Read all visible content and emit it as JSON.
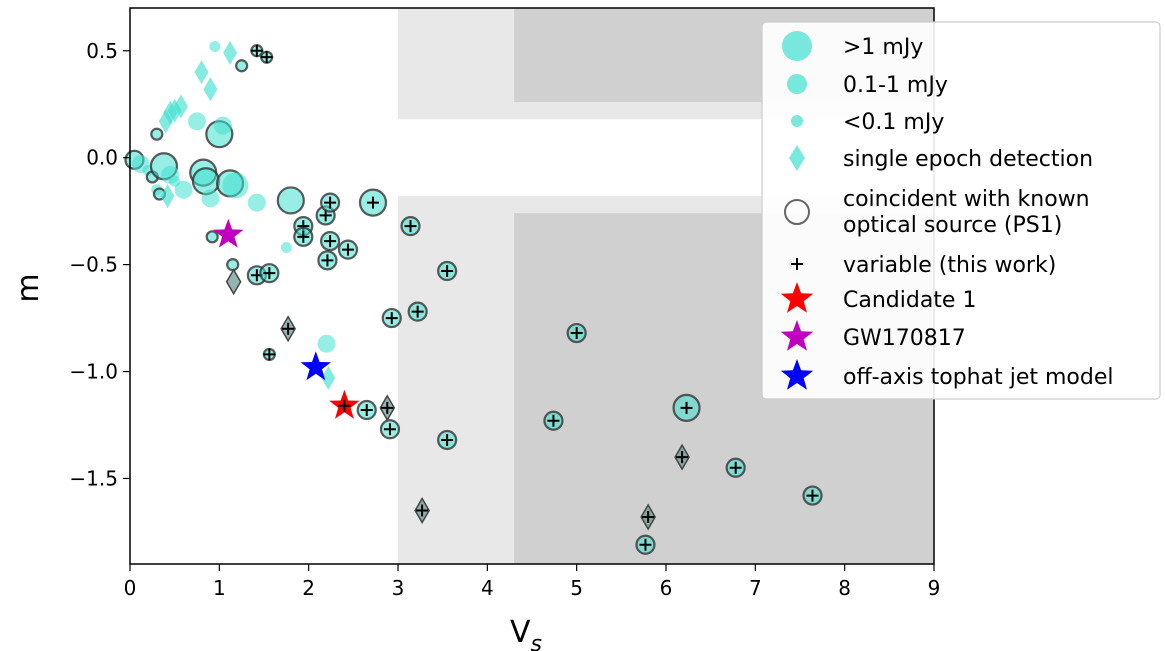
{
  "chart_data": {
    "type": "scatter",
    "xlabel": "V",
    "xlabel_sub": "s",
    "ylabel": "m",
    "xlim": [
      0,
      9
    ],
    "ylim": [
      -1.9,
      0.7
    ],
    "xticks": [
      "0",
      "1",
      "2",
      "3",
      "4",
      "5",
      "6",
      "7",
      "8",
      "9"
    ],
    "yticks": [
      "0.5",
      "0.0",
      "−0.5",
      "−1.0",
      "−1.5"
    ],
    "grid": false,
    "legend_position": "top-right",
    "shaded_regions": [
      {
        "shade": "light",
        "x": [
          3,
          9
        ],
        "y": [
          -1.9,
          -0.18
        ]
      },
      {
        "shade": "light",
        "x": [
          3,
          9
        ],
        "y": [
          0.18,
          0.7
        ]
      },
      {
        "shade": "dark",
        "x": [
          4.3,
          9
        ],
        "y": [
          -1.9,
          -0.26
        ]
      },
      {
        "shade": "dark",
        "x": [
          4.3,
          9
        ],
        "y": [
          0.26,
          0.7
        ]
      }
    ],
    "colors": {
      "cyan": "#40e0d0",
      "candidate": "#ff0000",
      "gw": "#bf00bf",
      "model": "#0000ff",
      "light_shade": "#e8e8e8",
      "dark_shade": "#d0d0d0"
    },
    "legend": [
      {
        "label": ">1 mJy",
        "symbol": "circle-large"
      },
      {
        "label": "0.1-1 mJy",
        "symbol": "circle-medium"
      },
      {
        "label": "<0.1 mJy",
        "symbol": "circle-small"
      },
      {
        "label": "single epoch detection",
        "symbol": "diamond"
      },
      {
        "label": "coincident with known",
        "label2": "optical source (PS1)",
        "symbol": "ring"
      },
      {
        "label": "variable (this work)",
        "symbol": "plus"
      },
      {
        "label": "Candidate 1",
        "symbol": "star-red"
      },
      {
        "label": "GW170817",
        "symbol": "star-magenta"
      },
      {
        "label": "off-axis tophat jet model",
        "symbol": "star-blue"
      }
    ],
    "points": [
      {
        "x": 0.05,
        "y": -0.01,
        "size": "m",
        "ring": true
      },
      {
        "x": 0.12,
        "y": -0.03,
        "size": "m",
        "ring": false
      },
      {
        "x": 0.2,
        "y": -0.06,
        "size": "s",
        "ring": false
      },
      {
        "x": 0.25,
        "y": -0.09,
        "size": "s",
        "ring": true
      },
      {
        "x": 0.3,
        "y": 0.11,
        "size": "s",
        "ring": true
      },
      {
        "x": 0.3,
        "y": -0.15,
        "size": "s",
        "ring": false
      },
      {
        "x": 0.33,
        "y": -0.17,
        "size": "s",
        "ring": true
      },
      {
        "x": 0.38,
        "y": -0.04,
        "size": "l",
        "ring": true
      },
      {
        "x": 0.45,
        "y": -0.08,
        "size": "m",
        "ring": false
      },
      {
        "x": 0.5,
        "y": -0.11,
        "size": "s",
        "ring": false
      },
      {
        "x": 0.6,
        "y": -0.15,
        "size": "m",
        "ring": false
      },
      {
        "x": 0.75,
        "y": 0.17,
        "size": "m",
        "ring": false
      },
      {
        "x": 0.82,
        "y": -0.07,
        "size": "l",
        "ring": true
      },
      {
        "x": 0.85,
        "y": -0.11,
        "size": "l",
        "ring": true
      },
      {
        "x": 0.9,
        "y": -0.19,
        "size": "m",
        "ring": false
      },
      {
        "x": 0.95,
        "y": 0.52,
        "size": "s",
        "ring": false
      },
      {
        "x": 1.0,
        "y": 0.11,
        "size": "l",
        "ring": true
      },
      {
        "x": 1.04,
        "y": 0.15,
        "size": "m",
        "ring": false
      },
      {
        "x": 1.12,
        "y": -0.12,
        "size": "l",
        "ring": true
      },
      {
        "x": 1.18,
        "y": -0.13,
        "size": "l",
        "ring": false
      },
      {
        "x": 0.92,
        "y": -0.37,
        "size": "s",
        "ring": true
      },
      {
        "x": 1.15,
        "y": -0.5,
        "size": "s",
        "ring": true
      },
      {
        "x": 1.25,
        "y": 0.43,
        "size": "s",
        "ring": true
      },
      {
        "x": 1.42,
        "y": -0.21,
        "size": "m",
        "ring": false
      },
      {
        "x": 1.75,
        "y": -0.42,
        "size": "s",
        "ring": false
      },
      {
        "x": 1.8,
        "y": -0.2,
        "size": "l",
        "ring": true
      },
      {
        "x": 2.2,
        "y": -0.87,
        "size": "m",
        "ring": false
      },
      {
        "x": 2.72,
        "y": -0.21,
        "size": "l",
        "ring": true,
        "plus": true
      },
      {
        "x": 6.23,
        "y": -1.17,
        "size": "l",
        "ring": true,
        "plus": true
      },
      {
        "x": 1.42,
        "y": -0.55,
        "size": "m",
        "ring": true,
        "plus": true
      },
      {
        "x": 1.56,
        "y": -0.54,
        "size": "m",
        "ring": true,
        "plus": true
      },
      {
        "x": 1.94,
        "y": -0.32,
        "size": "m",
        "ring": true,
        "plus": true
      },
      {
        "x": 1.94,
        "y": -0.37,
        "size": "m",
        "ring": true,
        "plus": true
      },
      {
        "x": 2.19,
        "y": -0.27,
        "size": "m",
        "ring": true,
        "plus": true
      },
      {
        "x": 2.24,
        "y": -0.21,
        "size": "m",
        "ring": true,
        "plus": true
      },
      {
        "x": 2.24,
        "y": -0.39,
        "size": "m",
        "ring": true,
        "plus": true
      },
      {
        "x": 2.21,
        "y": -0.48,
        "size": "m",
        "ring": true,
        "plus": true
      },
      {
        "x": 2.44,
        "y": -0.43,
        "size": "m",
        "ring": true,
        "plus": true
      },
      {
        "x": 2.65,
        "y": -1.18,
        "size": "m",
        "ring": true,
        "plus": true
      },
      {
        "x": 2.93,
        "y": -0.75,
        "size": "m",
        "ring": true,
        "plus": true
      },
      {
        "x": 2.91,
        "y": -1.27,
        "size": "m",
        "ring": true,
        "plus": true
      },
      {
        "x": 3.14,
        "y": -0.32,
        "size": "m",
        "ring": true,
        "plus": true
      },
      {
        "x": 3.22,
        "y": -0.72,
        "size": "m",
        "ring": true,
        "plus": true
      },
      {
        "x": 3.55,
        "y": -0.53,
        "size": "m",
        "ring": true,
        "plus": true
      },
      {
        "x": 3.55,
        "y": -1.32,
        "size": "m",
        "ring": true,
        "plus": true
      },
      {
        "x": 4.74,
        "y": -1.23,
        "size": "m",
        "ring": true,
        "plus": true
      },
      {
        "x": 5.0,
        "y": -0.82,
        "size": "m",
        "ring": true,
        "plus": true
      },
      {
        "x": 5.77,
        "y": -1.81,
        "size": "m",
        "ring": true,
        "plus": true
      },
      {
        "x": 6.78,
        "y": -1.45,
        "size": "m",
        "ring": true,
        "plus": true
      },
      {
        "x": 7.64,
        "y": -1.58,
        "size": "m",
        "ring": true,
        "plus": true
      },
      {
        "x": 1.42,
        "y": 0.5,
        "size": "s",
        "ring": true,
        "plus": true
      },
      {
        "x": 1.53,
        "y": 0.47,
        "size": "s",
        "ring": true,
        "plus": true
      },
      {
        "x": 1.56,
        "y": -0.92,
        "size": "s",
        "ring": true,
        "plus": true
      }
    ],
    "diamonds": [
      {
        "x": 0.4,
        "y": 0.17,
        "ring": false
      },
      {
        "x": 0.45,
        "y": 0.21,
        "ring": false
      },
      {
        "x": 0.5,
        "y": 0.22,
        "ring": false
      },
      {
        "x": 0.57,
        "y": 0.24,
        "ring": false
      },
      {
        "x": 0.42,
        "y": -0.18,
        "ring": false
      },
      {
        "x": 0.8,
        "y": 0.4,
        "ring": false
      },
      {
        "x": 0.9,
        "y": 0.32,
        "ring": false
      },
      {
        "x": 1.12,
        "y": 0.49,
        "ring": false
      },
      {
        "x": 1.16,
        "y": -0.58,
        "ring": true
      },
      {
        "x": 2.22,
        "y": -1.03,
        "ring": false
      },
      {
        "x": 1.77,
        "y": -0.8,
        "ring": true,
        "plus": true
      },
      {
        "x": 2.88,
        "y": -1.17,
        "ring": true,
        "plus": true
      },
      {
        "x": 3.27,
        "y": -1.65,
        "ring": true,
        "plus": true
      },
      {
        "x": 5.8,
        "y": -1.68,
        "ring": true,
        "plus": true
      },
      {
        "x": 6.18,
        "y": -1.4,
        "ring": true,
        "plus": true
      }
    ],
    "stars": [
      {
        "name": "Candidate 1",
        "x": 2.4,
        "y": -1.16,
        "color": "#ff0000",
        "plus": true
      },
      {
        "name": "GW170817",
        "x": 1.1,
        "y": -0.36,
        "color": "#bf00bf",
        "plus": false
      },
      {
        "name": "off-axis tophat jet model",
        "x": 2.08,
        "y": -0.98,
        "color": "#0000ff",
        "plus": false
      }
    ]
  }
}
